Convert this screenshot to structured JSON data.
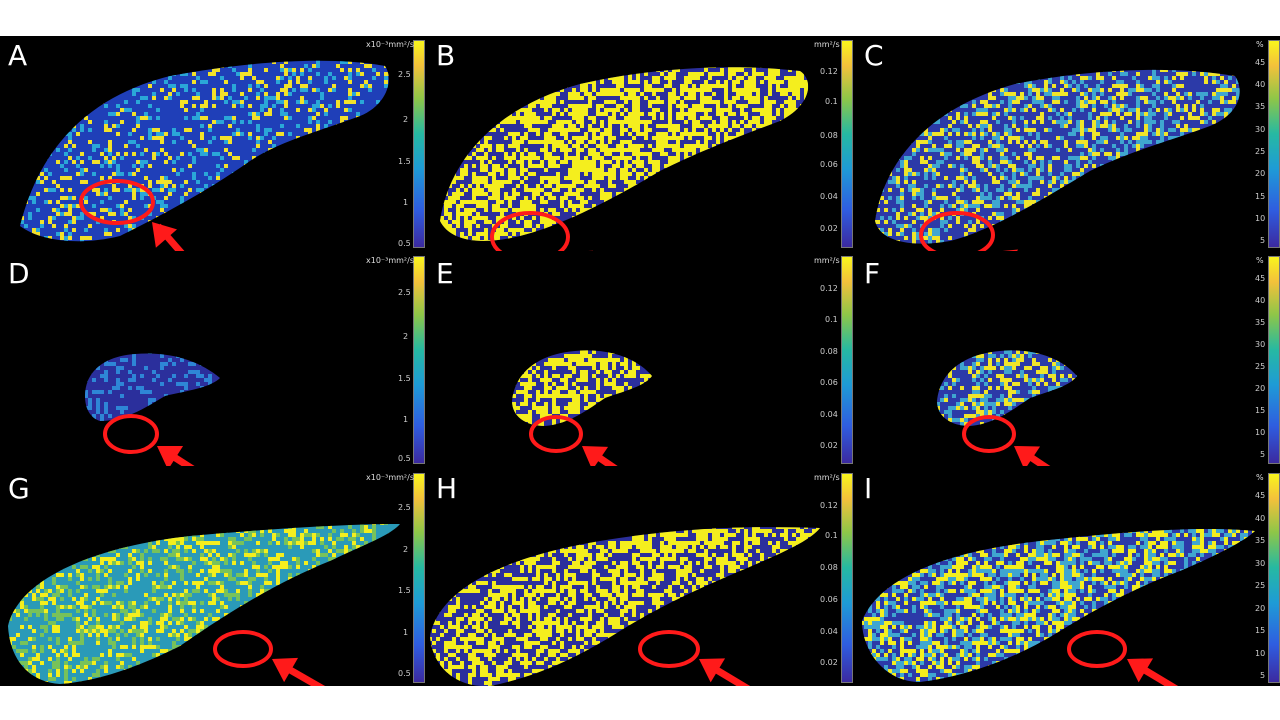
{
  "panels": [
    {
      "letter": "A",
      "unit": "x10⁻³mm²/s",
      "ticks": [
        "2.5",
        "2",
        "1.5",
        "1",
        "0.5"
      ],
      "fill": "#1f3fb8",
      "speck": "#2aa7d8",
      "accent": "#f2e12a",
      "density": 0.3
    },
    {
      "letter": "B",
      "unit": "mm²/s",
      "ticks": [
        "0.12",
        "0.1",
        "0.08",
        "0.06",
        "0.04",
        "0.02"
      ],
      "fill": "#2b2f9c",
      "speck": "#f4ee1e",
      "accent": "#f4ee1e",
      "density": 0.55
    },
    {
      "letter": "C",
      "unit": "%",
      "ticks": [
        "45",
        "40",
        "35",
        "30",
        "25",
        "20",
        "15",
        "10",
        "5"
      ],
      "fill": "#2c3aa8",
      "speck": "#f0e52a",
      "accent": "#3fa6d0",
      "density": 0.45
    },
    {
      "letter": "D",
      "unit": "x10⁻³mm²/s",
      "ticks": [
        "2.5",
        "2",
        "1.5",
        "1",
        "0.5"
      ],
      "fill": "#2b2f9c",
      "speck": "#2e86d6",
      "accent": "#2e86d6",
      "density": 0.25
    },
    {
      "letter": "E",
      "unit": "mm²/s",
      "ticks": [
        "0.12",
        "0.1",
        "0.08",
        "0.06",
        "0.04",
        "0.02"
      ],
      "fill": "#2b2f9c",
      "speck": "#f4ee1e",
      "accent": "#f4ee1e",
      "density": 0.5
    },
    {
      "letter": "F",
      "unit": "%",
      "ticks": [
        "45",
        "40",
        "35",
        "30",
        "25",
        "20",
        "15",
        "10",
        "5"
      ],
      "fill": "#2c3aa8",
      "speck": "#f0e52a",
      "accent": "#3fa6d0",
      "density": 0.45
    },
    {
      "letter": "G",
      "unit": "x10⁻³mm²/s",
      "ticks": [
        "2.5",
        "2",
        "1.5",
        "1",
        "0.5"
      ],
      "fill": "#2a9ab8",
      "speck": "#78c25a",
      "accent": "#f4ee1e",
      "density": 0.4
    },
    {
      "letter": "H",
      "unit": "mm²/s",
      "ticks": [
        "0.12",
        "0.1",
        "0.08",
        "0.06",
        "0.04",
        "0.02"
      ],
      "fill": "#2b2f9c",
      "speck": "#f4ee1e",
      "accent": "#f4ee1e",
      "density": 0.5
    },
    {
      "letter": "I",
      "unit": "%",
      "ticks": [
        "45",
        "40",
        "35",
        "30",
        "25",
        "20",
        "15",
        "10",
        "5"
      ],
      "fill": "#2c3aa8",
      "speck": "#f4ee1e",
      "accent": "#3fa6d0",
      "density": 0.6
    }
  ],
  "colors": {
    "marker": "#ff1a1a",
    "background": "#000000"
  }
}
